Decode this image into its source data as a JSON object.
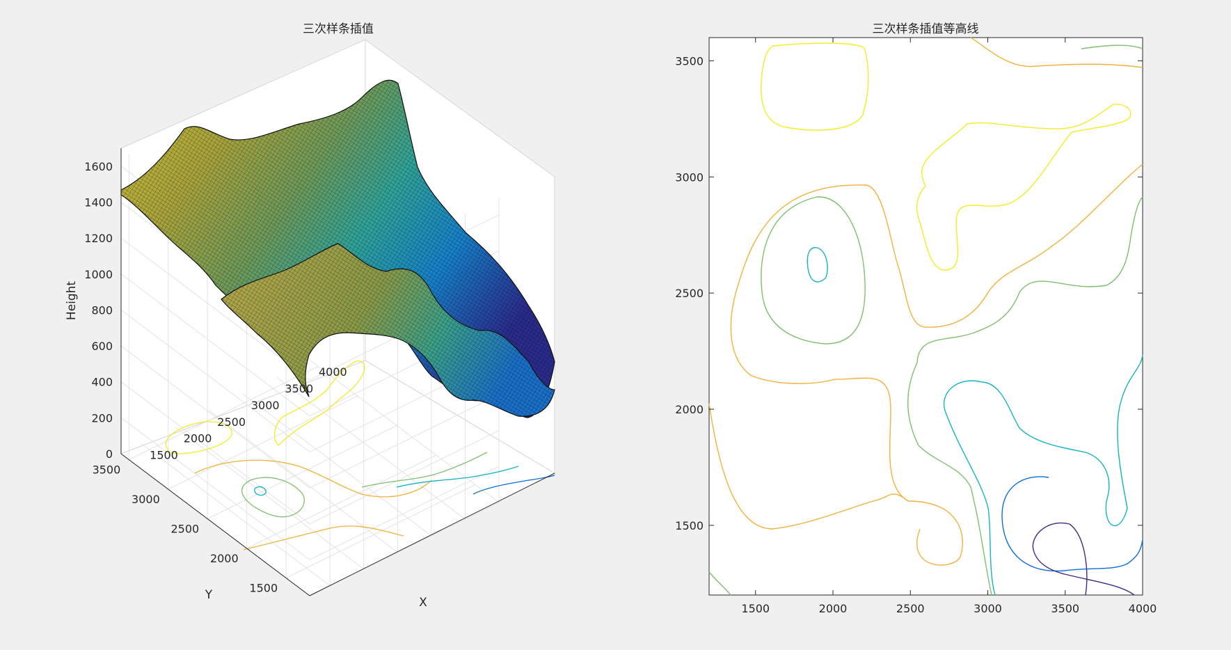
{
  "figure": {
    "background": "#f0f0f0"
  },
  "chart_data": [
    {
      "type": "surface",
      "title": "三次样条插值",
      "xlabel": "X",
      "ylabel": "Y",
      "zlabel": "Height",
      "x_ticks": [
        "1500",
        "2000",
        "2500",
        "3000",
        "3500",
        "4000"
      ],
      "y_ticks": [
        "1500",
        "2000",
        "2500",
        "3000",
        "3500"
      ],
      "z_ticks": [
        "0",
        "200",
        "400",
        "600",
        "800",
        "1000",
        "1200",
        "1400",
        "1600"
      ],
      "xlim": [
        1200,
        4000
      ],
      "ylim": [
        1200,
        3600
      ],
      "zlim": [
        0,
        1700
      ],
      "colormap": "parula",
      "colormap_colors": [
        "#352a87",
        "#0363e1",
        "#1485d4",
        "#06a7c6",
        "#38b99e",
        "#92bf73",
        "#d9ba56",
        "#fcce2e",
        "#f9fb0e"
      ],
      "grid": true,
      "base_contours": true
    },
    {
      "type": "contour",
      "title": "三次样条插值等高线",
      "x_ticks": [
        "1500",
        "2000",
        "2500",
        "3000",
        "3500",
        "4000"
      ],
      "y_ticks": [
        "1500",
        "2000",
        "2500",
        "3000",
        "3500"
      ],
      "xlim": [
        1200,
        4000
      ],
      "ylim": [
        1200,
        3600
      ],
      "levels": [
        {
          "value": 200,
          "color": "#3d2a8a"
        },
        {
          "value": 400,
          "color": "#0d6ed9"
        },
        {
          "value": 600,
          "color": "#13b2c9"
        },
        {
          "value": 800,
          "color": "#7fbf6e"
        },
        {
          "value": 1000,
          "color": "#f2b13a"
        },
        {
          "value": 1200,
          "color": "#f4ec22"
        }
      ]
    }
  ]
}
